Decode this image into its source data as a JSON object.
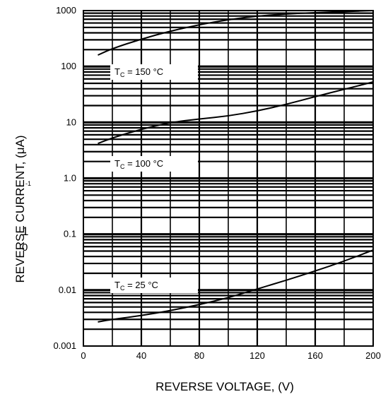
{
  "chart_data": {
    "type": "line",
    "title": "",
    "xlabel": "REVERSE VOLTAGE, (V)",
    "ylabel": "REVERSE CURRENT, (μA)",
    "ylabel_glyphs": [
      "1",
      "0",
      "-1"
    ],
    "xlim": [
      0,
      200
    ],
    "ylim": [
      0.001,
      1000
    ],
    "yscale": "log",
    "grid": true,
    "x_ticks": [
      0,
      40,
      80,
      120,
      160,
      200
    ],
    "x_tick_labels": [
      "0",
      "40",
      "80",
      "120",
      "160",
      "200"
    ],
    "y_ticks": [
      1000,
      100,
      10,
      1.0,
      0.1,
      0.01,
      0.001
    ],
    "y_tick_labels": [
      "1000",
      "100",
      "10",
      "1.0",
      "0.1",
      "0.01",
      "0.001"
    ],
    "series": [
      {
        "label_main": "T",
        "label_sub": "C",
        "label_rest": " = 150 °C",
        "x": [
          10,
          20,
          40,
          60,
          80,
          100,
          120,
          140,
          160,
          180,
          200
        ],
        "y": [
          160,
          210,
          310,
          430,
          560,
          690,
          800,
          870,
          920,
          960,
          1000
        ]
      },
      {
        "label_main": "T",
        "label_sub": "C",
        "label_rest": " = 100 °C",
        "x": [
          10,
          20,
          40,
          60,
          80,
          100,
          120,
          140,
          160,
          180,
          200
        ],
        "y": [
          4.2,
          5.3,
          7.6,
          10,
          11.5,
          13,
          16,
          21,
          29,
          39,
          53
        ]
      },
      {
        "label_main": "T",
        "label_sub": "C",
        "label_rest": " = 25 °C",
        "x": [
          10,
          20,
          40,
          60,
          80,
          100,
          120,
          140,
          160,
          180,
          200
        ],
        "y": [
          0.0027,
          0.003,
          0.0035,
          0.0043,
          0.0055,
          0.0073,
          0.0105,
          0.015,
          0.022,
          0.033,
          0.052
        ]
      }
    ]
  }
}
